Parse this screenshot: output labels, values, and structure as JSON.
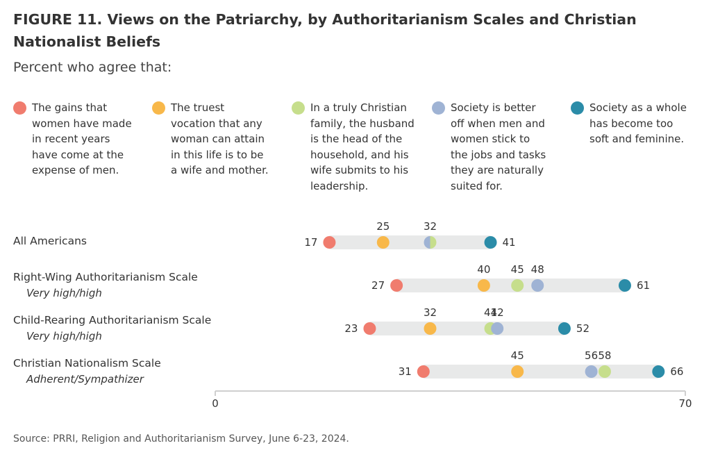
{
  "title": "FIGURE 11.  Views on the Patriarchy, by Authoritarianism Scales and Christian Nationalist Beliefs",
  "subtitle": "Percent who agree that:",
  "source": "Source: PRRI, Religion and Authoritarianism Survey, June 6-23, 2024.",
  "chart_data": {
    "type": "dot",
    "xlim": [
      0,
      70
    ],
    "x_ticks": [
      "0",
      "70"
    ],
    "categories": [
      {
        "label": "All Americans",
        "sublabel": ""
      },
      {
        "label": "Right-Wing Authoritarianism Scale",
        "sublabel": "Very high/high"
      },
      {
        "label": "Child-Rearing Authoritarianism Scale",
        "sublabel": "Very high/high"
      },
      {
        "label": "Christian Nationalism Scale",
        "sublabel": "Adherent/Sympathizer"
      }
    ],
    "series": [
      {
        "name": "The gains that women have made in recent years have come at the expense of men.",
        "color": "#f07c6e",
        "values": [
          17,
          27,
          23,
          31
        ]
      },
      {
        "name": "The truest vocation that any woman can attain in this life is to be a wife and mother.",
        "color": "#f8b84a",
        "values": [
          25,
          40,
          32,
          45
        ]
      },
      {
        "name": "In a truly Christian family, the husband is the head of the household, and his wife submits to his leadership.",
        "color": "#c6de8c",
        "values": [
          32,
          45,
          41,
          58
        ]
      },
      {
        "name": "Society is better off when men and women stick to the jobs and tasks they are naturally suited for.",
        "color": "#9fb3d4",
        "values": [
          32,
          48,
          42,
          56
        ]
      },
      {
        "name": "Society as a whole has become too soft and feminine.",
        "color": "#2b8ca8",
        "values": [
          41,
          61,
          52,
          66
        ]
      }
    ],
    "legend_lines": [
      [
        "The gains that",
        "women have made",
        "in recent years",
        "have come at the",
        "expense of men."
      ],
      [
        "The truest",
        "vocation that any",
        "woman can attain",
        "in this life is to be",
        "a wife and mother."
      ],
      [
        "In a truly Christian",
        "family, the husband",
        "is the head of the",
        "household, and his",
        "wife submits to his",
        "leadership."
      ],
      [
        "Society is better",
        "off when men and",
        "women stick to",
        "the jobs and tasks",
        "they are naturally",
        "suited for."
      ],
      [
        "Society as a whole",
        "has become too",
        "soft and feminine."
      ]
    ],
    "data_labels": [
      [
        {
          "series": 0,
          "text": "17",
          "pos": "left"
        },
        {
          "series": 1,
          "text": "25",
          "pos": "above"
        },
        {
          "series": 2,
          "text": "32",
          "pos": "above"
        },
        {
          "series": 4,
          "text": "41",
          "pos": "right"
        }
      ],
      [
        {
          "series": 0,
          "text": "27",
          "pos": "left"
        },
        {
          "series": 1,
          "text": "40",
          "pos": "above"
        },
        {
          "series": 2,
          "text": "45",
          "pos": "above"
        },
        {
          "series": 3,
          "text": "48",
          "pos": "above"
        },
        {
          "series": 4,
          "text": "61",
          "pos": "right"
        }
      ],
      [
        {
          "series": 0,
          "text": "23",
          "pos": "left"
        },
        {
          "series": 1,
          "text": "32",
          "pos": "above"
        },
        {
          "series": 2,
          "text": "41",
          "pos": "above"
        },
        {
          "series": 3,
          "text": "42",
          "pos": "above"
        },
        {
          "series": 4,
          "text": "52",
          "pos": "right"
        }
      ],
      [
        {
          "series": 0,
          "text": "31",
          "pos": "left"
        },
        {
          "series": 1,
          "text": "45",
          "pos": "above"
        },
        {
          "series": 3,
          "text": "56",
          "pos": "above"
        },
        {
          "series": 2,
          "text": "58",
          "pos": "above"
        },
        {
          "series": 4,
          "text": "66",
          "pos": "right"
        }
      ]
    ],
    "grid": false,
    "legend_position": "top"
  }
}
